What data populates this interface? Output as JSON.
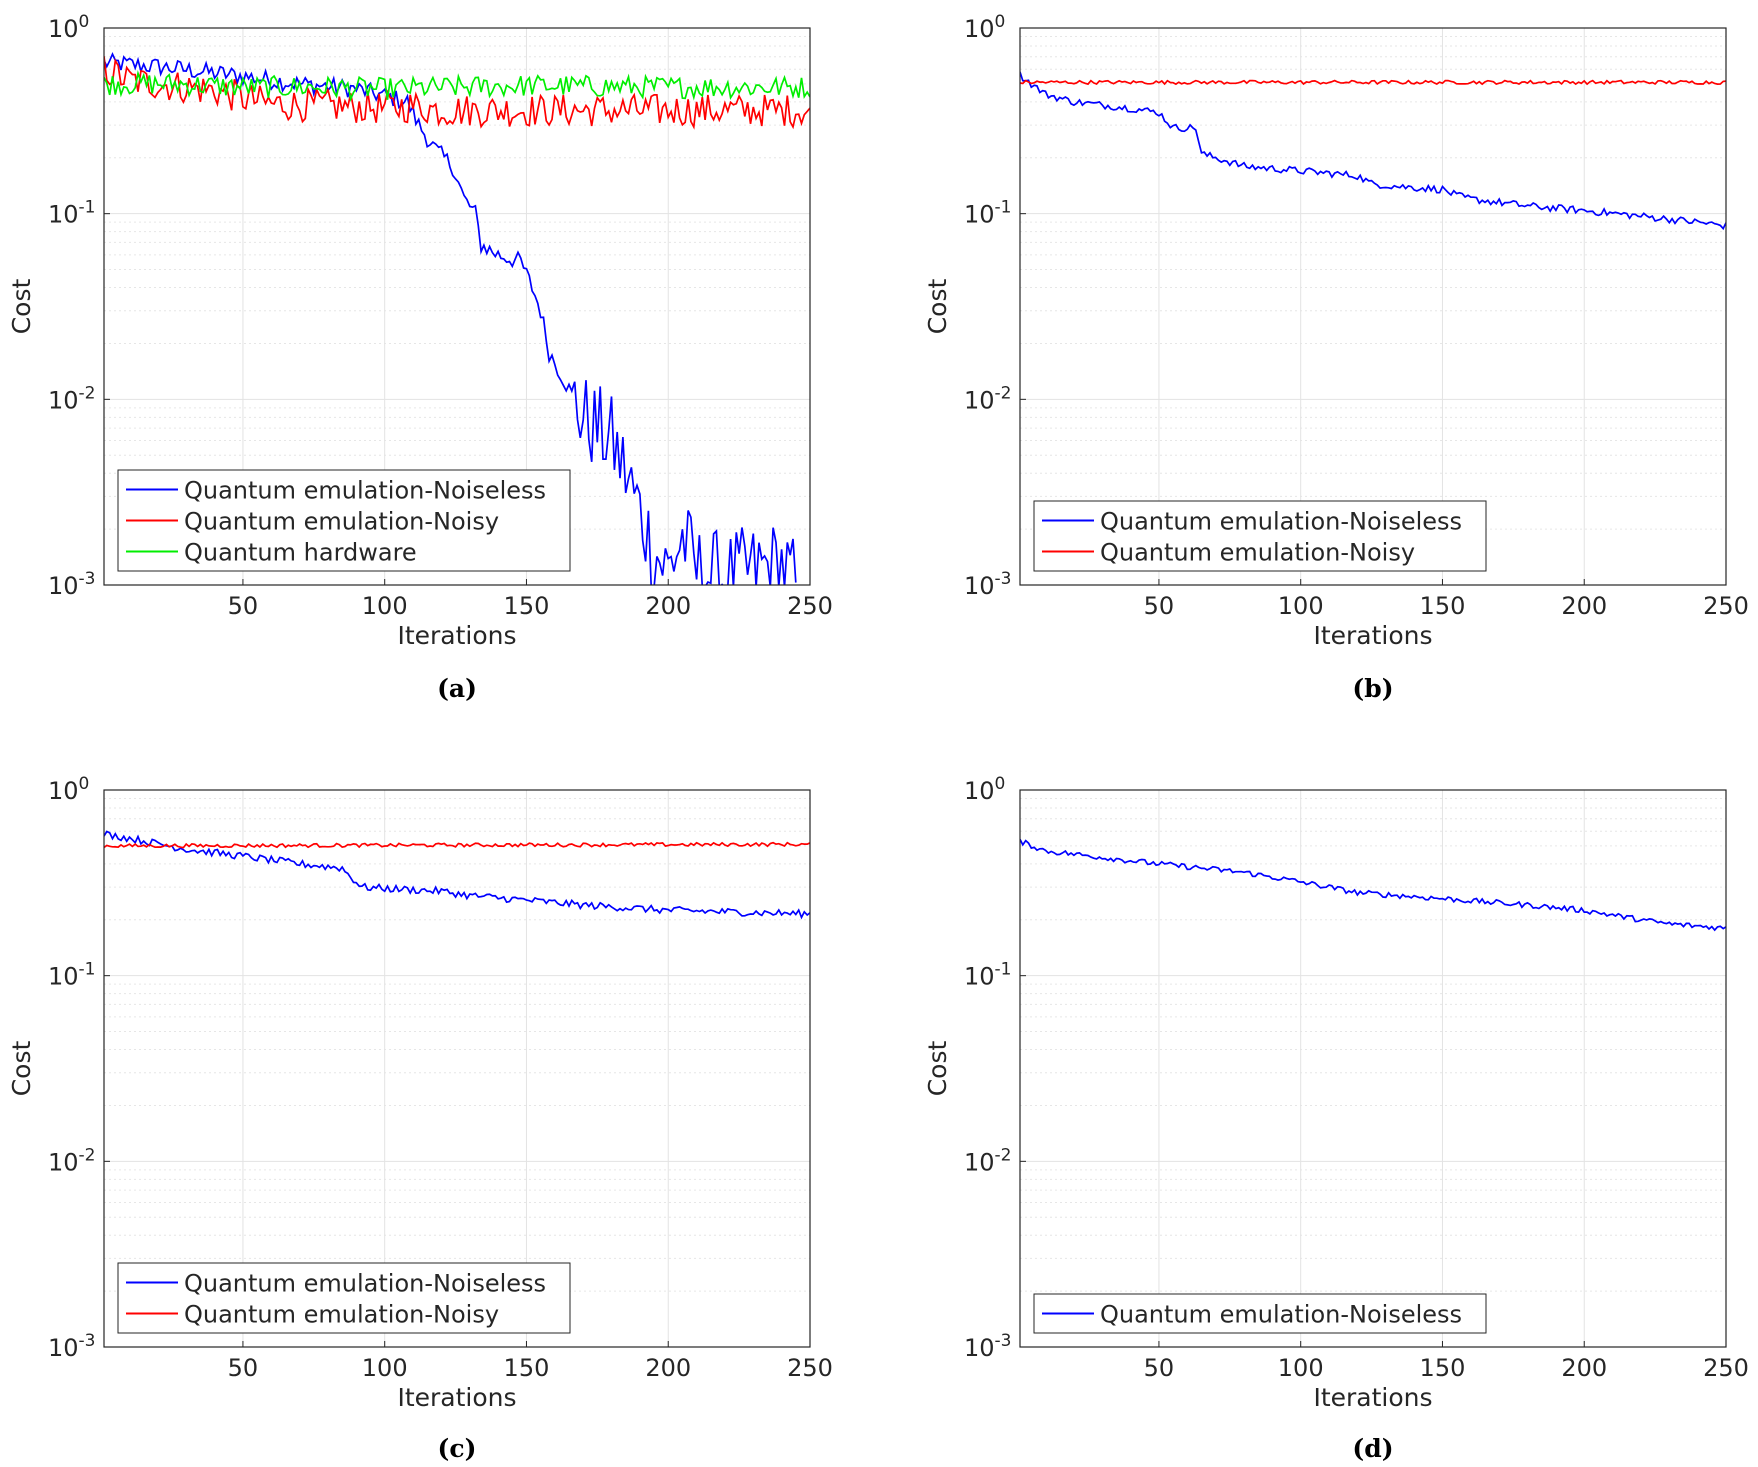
{
  "chart_data": [
    {
      "panel": "(a)",
      "type": "line",
      "yscale": "log",
      "xlabel": "Iterations",
      "ylabel": "Cost",
      "xlim": [
        1,
        250
      ],
      "ylim": [
        0.001,
        1
      ],
      "xticks": [
        50,
        100,
        150,
        200,
        250
      ],
      "yticks": [
        {
          "base": "10",
          "exp": "0"
        },
        {
          "base": "10",
          "exp": "-1"
        },
        {
          "base": "10",
          "exp": "-2"
        },
        {
          "base": "10",
          "exp": "-3"
        }
      ],
      "grid": true,
      "legend_position": "bottom-left",
      "series": [
        {
          "name": "Quantum emulation-Noiseless",
          "color": "#0000ff",
          "noise": 0.05,
          "x": [
            1,
            20,
            50,
            70,
            90,
            100,
            108,
            112,
            118,
            124,
            128,
            132,
            134,
            140,
            148,
            152,
            155,
            158,
            163,
            170,
            180,
            185,
            190,
            195,
            200,
            205,
            210,
            220,
            230,
            240,
            245
          ],
          "y": [
            0.65,
            0.62,
            0.55,
            0.5,
            0.47,
            0.43,
            0.4,
            0.3,
            0.22,
            0.18,
            0.12,
            0.1,
            0.068,
            0.06,
            0.055,
            0.04,
            0.03,
            0.018,
            0.013,
            0.008,
            0.006,
            0.004,
            0.0025,
            0.0015,
            0.0012,
            0.0018,
            0.0012,
            0.0011,
            0.0012,
            0.0013,
            0.001
          ]
        },
        {
          "name": "Quantum emulation-Noisy",
          "color": "#ff0000",
          "noise": 0.09,
          "x": [
            1,
            10,
            20,
            40,
            50,
            60,
            80,
            100,
            110,
            120,
            150,
            200,
            250
          ],
          "y": [
            0.6,
            0.52,
            0.5,
            0.46,
            0.42,
            0.39,
            0.38,
            0.37,
            0.38,
            0.36,
            0.36,
            0.36,
            0.36
          ]
        },
        {
          "name": "Quantum hardware",
          "color": "#00ee00",
          "noise": 0.06,
          "x": [
            1,
            25,
            50,
            75,
            100,
            150,
            200,
            250
          ],
          "y": [
            0.5,
            0.5,
            0.48,
            0.48,
            0.47,
            0.49,
            0.48,
            0.48
          ]
        }
      ],
      "caption": "(a)"
    },
    {
      "panel": "(b)",
      "type": "line",
      "yscale": "log",
      "xlabel": "Iterations",
      "ylabel": "Cost",
      "xlim": [
        1,
        250
      ],
      "ylim": [
        0.001,
        1
      ],
      "xticks": [
        50,
        100,
        150,
        200,
        250
      ],
      "yticks": [
        {
          "base": "10",
          "exp": "0"
        },
        {
          "base": "10",
          "exp": "-1"
        },
        {
          "base": "10",
          "exp": "-2"
        },
        {
          "base": "10",
          "exp": "-3"
        }
      ],
      "grid": true,
      "legend_position": "bottom-left",
      "series": [
        {
          "name": "Quantum emulation-Noiseless",
          "color": "#0000ff",
          "noise": 0.02,
          "x": [
            1,
            5,
            10,
            20,
            40,
            50,
            55,
            60,
            63,
            65,
            70,
            75,
            80,
            90,
            100,
            110,
            120,
            125,
            135,
            150,
            155,
            160,
            170,
            180,
            200,
            220,
            240,
            250
          ],
          "y": [
            0.56,
            0.5,
            0.44,
            0.4,
            0.37,
            0.35,
            0.29,
            0.29,
            0.29,
            0.21,
            0.2,
            0.19,
            0.18,
            0.175,
            0.17,
            0.165,
            0.16,
            0.145,
            0.14,
            0.135,
            0.125,
            0.12,
            0.115,
            0.11,
            0.104,
            0.097,
            0.09,
            0.086
          ]
        },
        {
          "name": "Quantum emulation-Noisy",
          "color": "#ff0000",
          "noise": 0.01,
          "x": [
            1,
            250
          ],
          "y": [
            0.51,
            0.51
          ]
        }
      ],
      "caption": "(b)"
    },
    {
      "panel": "(c)",
      "type": "line",
      "yscale": "log",
      "xlabel": "Iterations",
      "ylabel": "Cost",
      "xlim": [
        1,
        250
      ],
      "ylim": [
        0.001,
        1
      ],
      "xticks": [
        50,
        100,
        150,
        200,
        250
      ],
      "yticks": [
        {
          "base": "10",
          "exp": "0"
        },
        {
          "base": "10",
          "exp": "-1"
        },
        {
          "base": "10",
          "exp": "-2"
        },
        {
          "base": "10",
          "exp": "-3"
        }
      ],
      "grid": true,
      "legend_position": "bottom-left",
      "series": [
        {
          "name": "Quantum emulation-Noiseless",
          "color": "#0000ff",
          "noise": 0.02,
          "x": [
            1,
            10,
            30,
            50,
            70,
            85,
            88,
            92,
            100,
            120,
            130,
            150,
            170,
            200,
            250
          ],
          "y": [
            0.58,
            0.55,
            0.48,
            0.44,
            0.4,
            0.38,
            0.34,
            0.3,
            0.295,
            0.285,
            0.27,
            0.255,
            0.24,
            0.225,
            0.215
          ]
        },
        {
          "name": "Quantum emulation-Noisy",
          "color": "#ff0000",
          "noise": 0.01,
          "x": [
            1,
            250
          ],
          "y": [
            0.5,
            0.51
          ]
        }
      ],
      "caption": "(c)"
    },
    {
      "panel": "(d)",
      "type": "line",
      "yscale": "log",
      "xlabel": "Iterations",
      "ylabel": "Cost",
      "xlim": [
        1,
        250
      ],
      "ylim": [
        0.001,
        1
      ],
      "xticks": [
        50,
        100,
        150,
        200,
        250
      ],
      "yticks": [
        {
          "base": "10",
          "exp": "0"
        },
        {
          "base": "10",
          "exp": "-1"
        },
        {
          "base": "10",
          "exp": "-2"
        },
        {
          "base": "10",
          "exp": "-3"
        }
      ],
      "grid": true,
      "legend_position": "bottom-left",
      "series": [
        {
          "name": "Quantum emulation-Noiseless",
          "color": "#0000ff",
          "noise": 0.015,
          "x": [
            1,
            10,
            50,
            80,
            100,
            120,
            150,
            180,
            200,
            220,
            230,
            240,
            250
          ],
          "y": [
            0.53,
            0.47,
            0.4,
            0.36,
            0.32,
            0.28,
            0.26,
            0.24,
            0.225,
            0.2,
            0.19,
            0.185,
            0.18
          ]
        }
      ],
      "caption": "(d)"
    }
  ]
}
